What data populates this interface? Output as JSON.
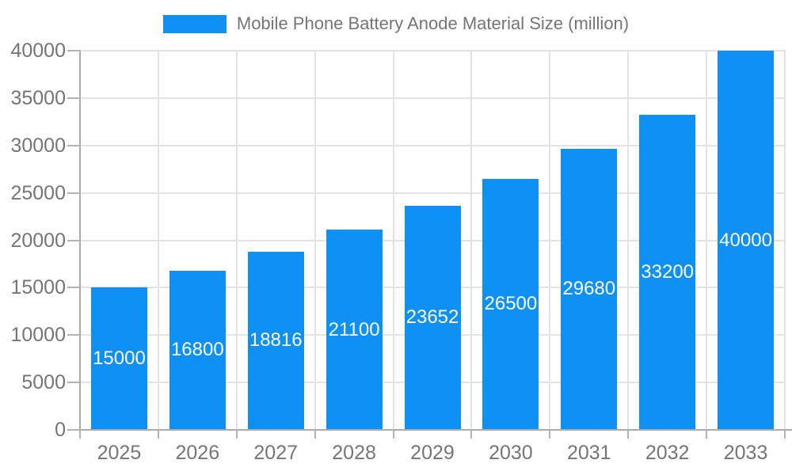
{
  "legend": {
    "position": "top",
    "swatch_icon": "series-color-swatch"
  },
  "chart_data": {
    "type": "bar",
    "title": "Mobile Phone Battery Anode Material Size (million)",
    "series_name": "Mobile Phone Battery Anode Material Size (million)",
    "categories": [
      "2025",
      "2026",
      "2027",
      "2028",
      "2029",
      "2030",
      "2031",
      "2032",
      "2033"
    ],
    "values": [
      15000,
      16800,
      18816,
      21100,
      23652,
      26500,
      29680,
      33200,
      40000
    ],
    "xlabel": "",
    "ylabel": "",
    "ylim": [
      0,
      40000
    ],
    "ytick_interval": 5000,
    "yticks": [
      0,
      5000,
      10000,
      15000,
      20000,
      25000,
      30000,
      35000,
      40000
    ],
    "grid": true,
    "legend_position": "top",
    "bar_labels_inside": true,
    "colors": {
      "bar": "#0E90F5",
      "bar_label": "#ffffff",
      "axis_text": "#757575",
      "axis_line": "#ababab",
      "tick_line": "#b3b3b3",
      "grid_line": "#e3e3e3",
      "background": "#ffffff"
    }
  }
}
